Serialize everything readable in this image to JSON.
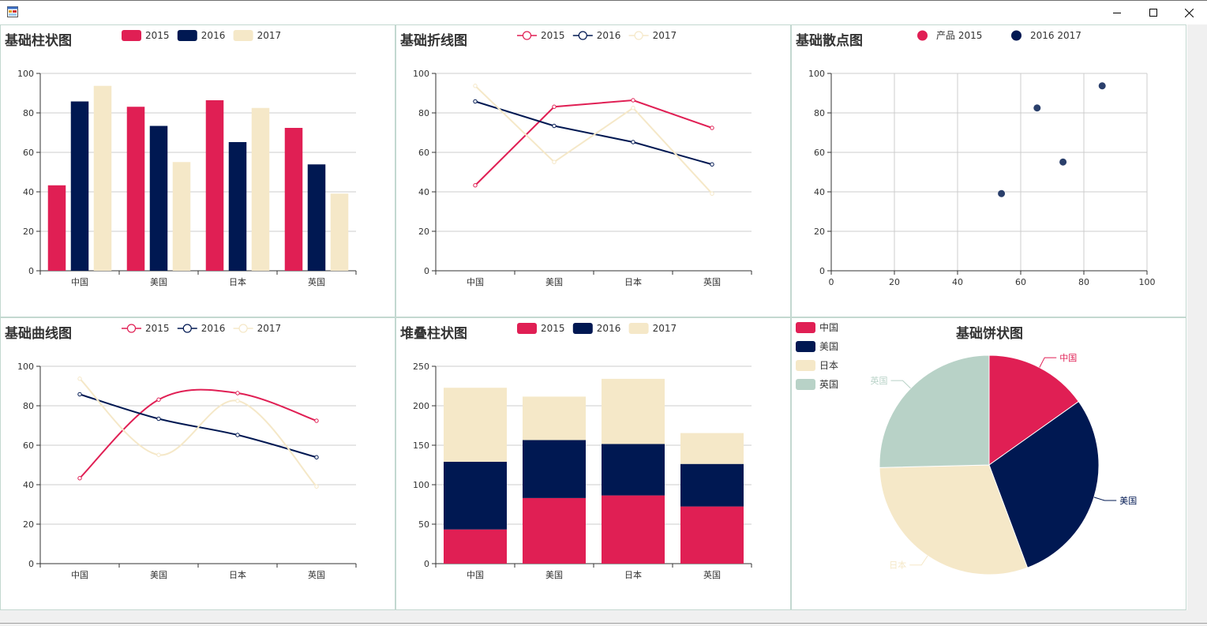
{
  "window": {
    "title": ""
  },
  "colors": {
    "s2015": "#E01F54",
    "s2016": "#001852",
    "s2017": "#F5E8C8",
    "s4": "#B8D2C7",
    "axis": "#333333",
    "grid": "#cccccc",
    "border": "#c3d8d0"
  },
  "legend": {
    "y2015": "2015",
    "y2016": "2016",
    "y2017": "2017"
  },
  "charts": {
    "bar": {
      "title": "基础柱状图",
      "chart_data": {
        "type": "bar",
        "categories": [
          "中国",
          "美国",
          "日本",
          "英国"
        ],
        "series": [
          {
            "name": "2015",
            "values": [
              43.3,
              83.1,
              86.4,
              72.4
            ]
          },
          {
            "name": "2016",
            "values": [
              85.8,
              73.4,
              65.2,
              53.9
            ]
          },
          {
            "name": "2017",
            "values": [
              93.7,
              55.1,
              82.5,
              39.1
            ]
          }
        ],
        "ylim": [
          0,
          100
        ],
        "yticks": [
          0,
          20,
          40,
          60,
          80,
          100
        ],
        "grid": true,
        "legend": "top"
      }
    },
    "line": {
      "title": "基础折线图",
      "chart_data": {
        "type": "line",
        "categories": [
          "中国",
          "美国",
          "日本",
          "英国"
        ],
        "series": [
          {
            "name": "2015",
            "values": [
              43.3,
              83.1,
              86.4,
              72.4
            ]
          },
          {
            "name": "2016",
            "values": [
              85.8,
              73.4,
              65.2,
              53.9
            ]
          },
          {
            "name": "2017",
            "values": [
              93.7,
              55.1,
              82.5,
              39.1
            ]
          }
        ],
        "ylim": [
          0,
          100
        ],
        "yticks": [
          0,
          20,
          40,
          60,
          80,
          100
        ],
        "grid": true,
        "legend": "top"
      }
    },
    "scatter": {
      "title": "基础散点图",
      "chart_data": {
        "type": "scatter",
        "series": [
          {
            "name": "产品 2015",
            "points": []
          },
          {
            "name": "2016 2017",
            "points": [
              [
                53.9,
                39.1
              ],
              [
                65.2,
                82.5
              ],
              [
                73.4,
                55.1
              ],
              [
                85.8,
                93.7
              ]
            ]
          }
        ],
        "xlim": [
          0,
          100
        ],
        "ylim": [
          0,
          100
        ],
        "xticks": [
          0,
          20,
          40,
          60,
          80,
          100
        ],
        "yticks": [
          0,
          20,
          40,
          60,
          80,
          100
        ],
        "grid": true,
        "legend": "top"
      }
    },
    "smooth": {
      "title": "基础曲线图",
      "chart_data": {
        "type": "line",
        "smooth": true,
        "categories": [
          "中国",
          "美国",
          "日本",
          "英国"
        ],
        "series": [
          {
            "name": "2015",
            "values": [
              43.3,
              83.1,
              86.4,
              72.4
            ]
          },
          {
            "name": "2016",
            "values": [
              85.8,
              73.4,
              65.2,
              53.9
            ]
          },
          {
            "name": "2017",
            "values": [
              93.7,
              55.1,
              82.5,
              39.1
            ]
          }
        ],
        "ylim": [
          0,
          100
        ],
        "yticks": [
          0,
          20,
          40,
          60,
          80,
          100
        ],
        "grid": true,
        "legend": "top"
      }
    },
    "stack": {
      "title": "堆叠柱状图",
      "chart_data": {
        "type": "bar",
        "stacked": true,
        "categories": [
          "中国",
          "美国",
          "日本",
          "英国"
        ],
        "series": [
          {
            "name": "2015",
            "values": [
              43.3,
              83.1,
              86.4,
              72.4
            ]
          },
          {
            "name": "2016",
            "values": [
              85.8,
              73.4,
              65.2,
              53.9
            ]
          },
          {
            "name": "2017",
            "values": [
              93.7,
              55.1,
              82.5,
              39.1
            ]
          }
        ],
        "ylim": [
          0,
          250
        ],
        "yticks": [
          0,
          50,
          100,
          150,
          200,
          250
        ],
        "grid": true,
        "legend": "top"
      }
    },
    "pie": {
      "title": "基础饼状图",
      "chart_data": {
        "type": "pie",
        "slices": [
          {
            "label": "中国",
            "value": 43.3
          },
          {
            "label": "美国",
            "value": 83.1
          },
          {
            "label": "日本",
            "value": 86.4
          },
          {
            "label": "英国",
            "value": 72.4
          }
        ],
        "legend": "top-left"
      }
    }
  }
}
